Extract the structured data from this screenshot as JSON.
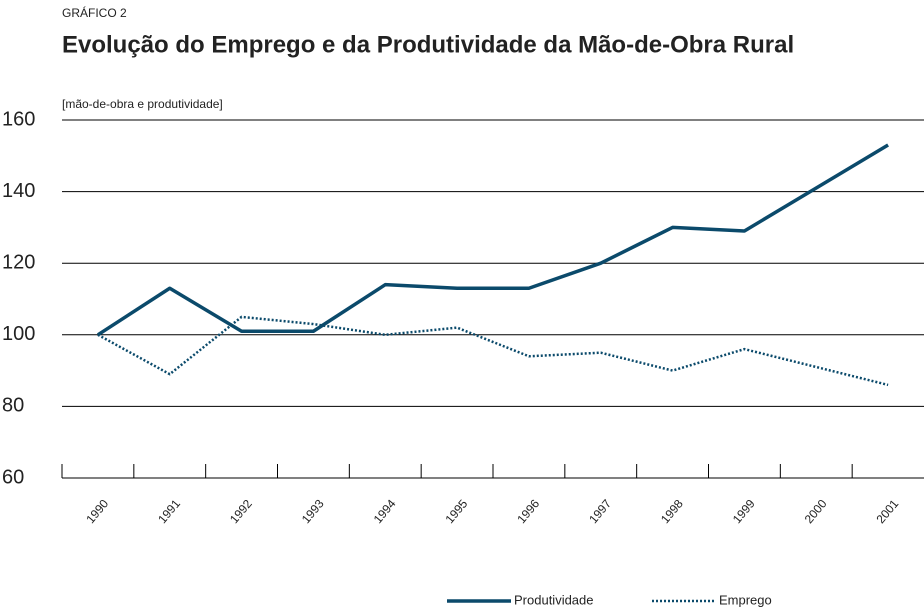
{
  "chart_data": {
    "type": "line",
    "subtitle": "GRÁFICO 2",
    "title": "Evolução do Emprego e da Produtividade da Mão-de-Obra Rural",
    "y_label": "[mão-de-obra e produtividade]",
    "categories": [
      "1990",
      "1991",
      "1992",
      "1993",
      "1994",
      "1995",
      "1996",
      "1997",
      "1998",
      "1999",
      "2000",
      "2001"
    ],
    "series": [
      {
        "name": "Produtividade",
        "color": "#0b4a6b",
        "style": "solid",
        "values": [
          100,
          113,
          101,
          101,
          114,
          113,
          113,
          120,
          130,
          129,
          141,
          153
        ]
      },
      {
        "name": "Emprego",
        "color": "#0b4a6b",
        "style": "dotted",
        "values": [
          100,
          89,
          105,
          103,
          100,
          102,
          94,
          95,
          90,
          96,
          91,
          86
        ]
      }
    ],
    "ylim": [
      60,
      160
    ],
    "yticks": [
      60,
      80,
      100,
      120,
      140,
      160
    ],
    "grid": true
  }
}
